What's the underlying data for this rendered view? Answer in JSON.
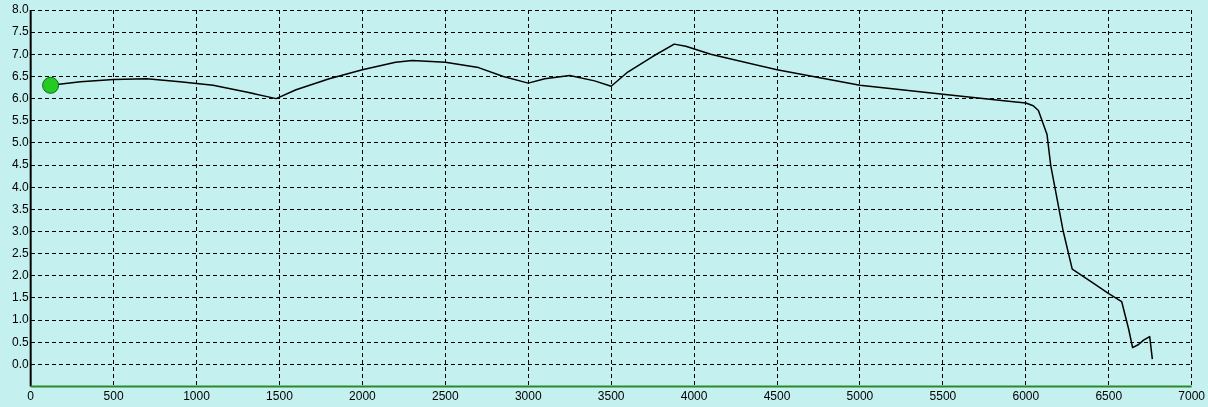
{
  "chart_data": {
    "type": "line",
    "xlim": [
      0,
      7000
    ],
    "ylim": [
      -0.5,
      8
    ],
    "xticks": [
      0,
      500,
      1000,
      1500,
      2000,
      2500,
      3000,
      3500,
      4000,
      4500,
      5000,
      5500,
      6000,
      6500,
      7000
    ],
    "yticks": [
      {
        "value": 0,
        "label": "0.0"
      },
      {
        "value": 0.5,
        "label": "0.5"
      },
      {
        "value": 1,
        "label": "1.0"
      },
      {
        "value": 1.5,
        "label": "1.5"
      },
      {
        "value": 2,
        "label": "2.0"
      },
      {
        "value": 2.5,
        "label": "2.5"
      },
      {
        "value": 3,
        "label": "3.0"
      },
      {
        "value": 3.5,
        "label": "3.5"
      },
      {
        "value": 4,
        "label": "4.0"
      },
      {
        "value": 4.5,
        "label": "4.5"
      },
      {
        "value": 5,
        "label": "5.0"
      },
      {
        "value": 5.5,
        "label": "5.5"
      },
      {
        "value": 6,
        "label": "6.0"
      },
      {
        "value": 6.5,
        "label": "6.5"
      },
      {
        "value": 7,
        "label": "7.0"
      },
      {
        "value": 7.5,
        "label": "7.5"
      },
      {
        "value": 8,
        "label": "8.0"
      }
    ],
    "grid": true,
    "line_style": "solid",
    "marker": "none",
    "series": [
      {
        "type": "line",
        "color": "#000000",
        "x": [
          120,
          300,
          500,
          700,
          900,
          1100,
          1300,
          1480,
          1600,
          1800,
          2000,
          2200,
          2300,
          2500,
          2700,
          2850,
          3000,
          3100,
          3250,
          3400,
          3500,
          3600,
          3750,
          3880,
          3950,
          4100,
          4500,
          5000,
          5500,
          6000,
          6045,
          6076,
          6128,
          6150,
          6226,
          6280,
          6400,
          6500,
          6578,
          6620,
          6644,
          6680,
          6710,
          6747,
          6763
        ],
        "values": [
          6.3,
          6.38,
          6.43,
          6.45,
          6.38,
          6.3,
          6.15,
          6.0,
          6.2,
          6.45,
          6.65,
          6.82,
          6.86,
          6.82,
          6.7,
          6.5,
          6.35,
          6.45,
          6.52,
          6.4,
          6.28,
          6.6,
          6.95,
          7.23,
          7.18,
          7.0,
          6.65,
          6.3,
          6.1,
          5.9,
          5.84,
          5.73,
          5.19,
          4.5,
          3.0,
          2.15,
          1.85,
          1.6,
          1.42,
          0.8,
          0.38,
          0.45,
          0.55,
          0.63,
          0.12
        ]
      },
      {
        "type": "scatter",
        "color": "#22cc22",
        "marker": "circle",
        "x": [
          120
        ],
        "values": [
          6.3
        ]
      }
    ]
  }
}
